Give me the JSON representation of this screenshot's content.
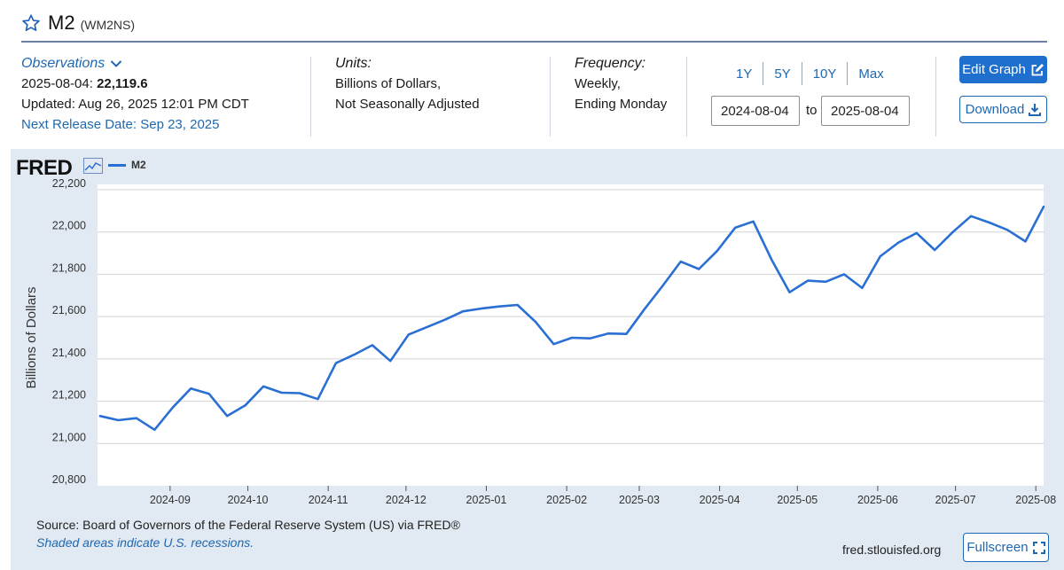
{
  "header": {
    "title": "M2",
    "series_code": "(WM2NS)"
  },
  "observations": {
    "link_label": "Observations",
    "date_label": "2025-08-04:",
    "value": "22,119.6",
    "updated": "Updated: Aug 26, 2025 12:01 PM CDT",
    "next_release": "Next Release Date: Sep 23, 2025"
  },
  "units": {
    "label": "Units:",
    "line1": "Billions of Dollars,",
    "line2": "Not Seasonally Adjusted"
  },
  "frequency": {
    "label": "Frequency:",
    "line1": "Weekly,",
    "line2": "Ending Monday"
  },
  "range": {
    "buttons": [
      "1Y",
      "5Y",
      "10Y",
      "Max"
    ],
    "start": "2024-08-04",
    "to_label": "to",
    "end": "2025-08-04"
  },
  "actions": {
    "edit_graph": "Edit Graph",
    "download": "Download",
    "fullscreen": "Fullscreen"
  },
  "graph": {
    "logo": "FRED",
    "legend_label": "M2",
    "source": "Source: Board of Governors of the Federal Reserve System (US) via FRED®",
    "shaded": "Shaded areas indicate U.S. recessions.",
    "site": "fred.stlouisfed.org"
  },
  "chart_data": {
    "type": "line",
    "ylabel": "Billions of Dollars",
    "xlabel": "",
    "ylim": [
      20800,
      22200
    ],
    "yticks": [
      20800,
      21000,
      21200,
      21400,
      21600,
      21800,
      22000,
      22200
    ],
    "ytick_labels": [
      "20,800",
      "21,000",
      "21,200",
      "21,400",
      "21,600",
      "21,800",
      "22,000",
      "22,200"
    ],
    "xlim": [
      "2024-08-04",
      "2025-08-04"
    ],
    "xticks": [
      "2024-09-01",
      "2024-10-01",
      "2024-11-01",
      "2024-12-01",
      "2025-01-01",
      "2025-02-01",
      "2025-03-01",
      "2025-04-01",
      "2025-05-01",
      "2025-06-01",
      "2025-07-01",
      "2025-08-01"
    ],
    "xtick_labels": [
      "2024-09",
      "2024-10",
      "2024-11",
      "2024-12",
      "2025-01",
      "2025-02",
      "2025-03",
      "2025-04",
      "2025-05",
      "2025-06",
      "2025-07",
      "2025-08"
    ],
    "grid": "horizontal",
    "legend": "top-left",
    "color": "#2a6fd3",
    "series": [
      {
        "name": "M2",
        "x": [
          "2024-08-05",
          "2024-08-12",
          "2024-08-19",
          "2024-08-26",
          "2024-09-02",
          "2024-09-09",
          "2024-09-16",
          "2024-09-23",
          "2024-09-30",
          "2024-10-07",
          "2024-10-14",
          "2024-10-21",
          "2024-10-28",
          "2024-11-04",
          "2024-11-11",
          "2024-11-18",
          "2024-11-25",
          "2024-12-02",
          "2024-12-09",
          "2024-12-16",
          "2024-12-23",
          "2024-12-30",
          "2025-01-06",
          "2025-01-13",
          "2025-01-20",
          "2025-01-27",
          "2025-02-03",
          "2025-02-10",
          "2025-02-17",
          "2025-02-24",
          "2025-03-03",
          "2025-03-10",
          "2025-03-17",
          "2025-03-24",
          "2025-03-31",
          "2025-04-07",
          "2025-04-14",
          "2025-04-21",
          "2025-04-28",
          "2025-05-05",
          "2025-05-12",
          "2025-05-19",
          "2025-05-26",
          "2025-06-02",
          "2025-06-09",
          "2025-06-16",
          "2025-06-23",
          "2025-06-30",
          "2025-07-07",
          "2025-07-14",
          "2025-07-21",
          "2025-07-28",
          "2025-08-04"
        ],
        "values": [
          21130,
          21110,
          21120,
          21065,
          21170,
          21260,
          21235,
          21130,
          21180,
          21270,
          21240,
          21238,
          21210,
          21380,
          21420,
          21465,
          21390,
          21515,
          21550,
          21585,
          21625,
          21638,
          21648,
          21655,
          21575,
          21470,
          21500,
          21497,
          21520,
          21518,
          21635,
          21745,
          21860,
          21825,
          21910,
          22020,
          22050,
          21870,
          21715,
          21770,
          21765,
          21800,
          21735,
          21885,
          21950,
          21995,
          21915,
          22000,
          22075,
          22045,
          22010,
          21955,
          22119.6
        ]
      }
    ]
  }
}
